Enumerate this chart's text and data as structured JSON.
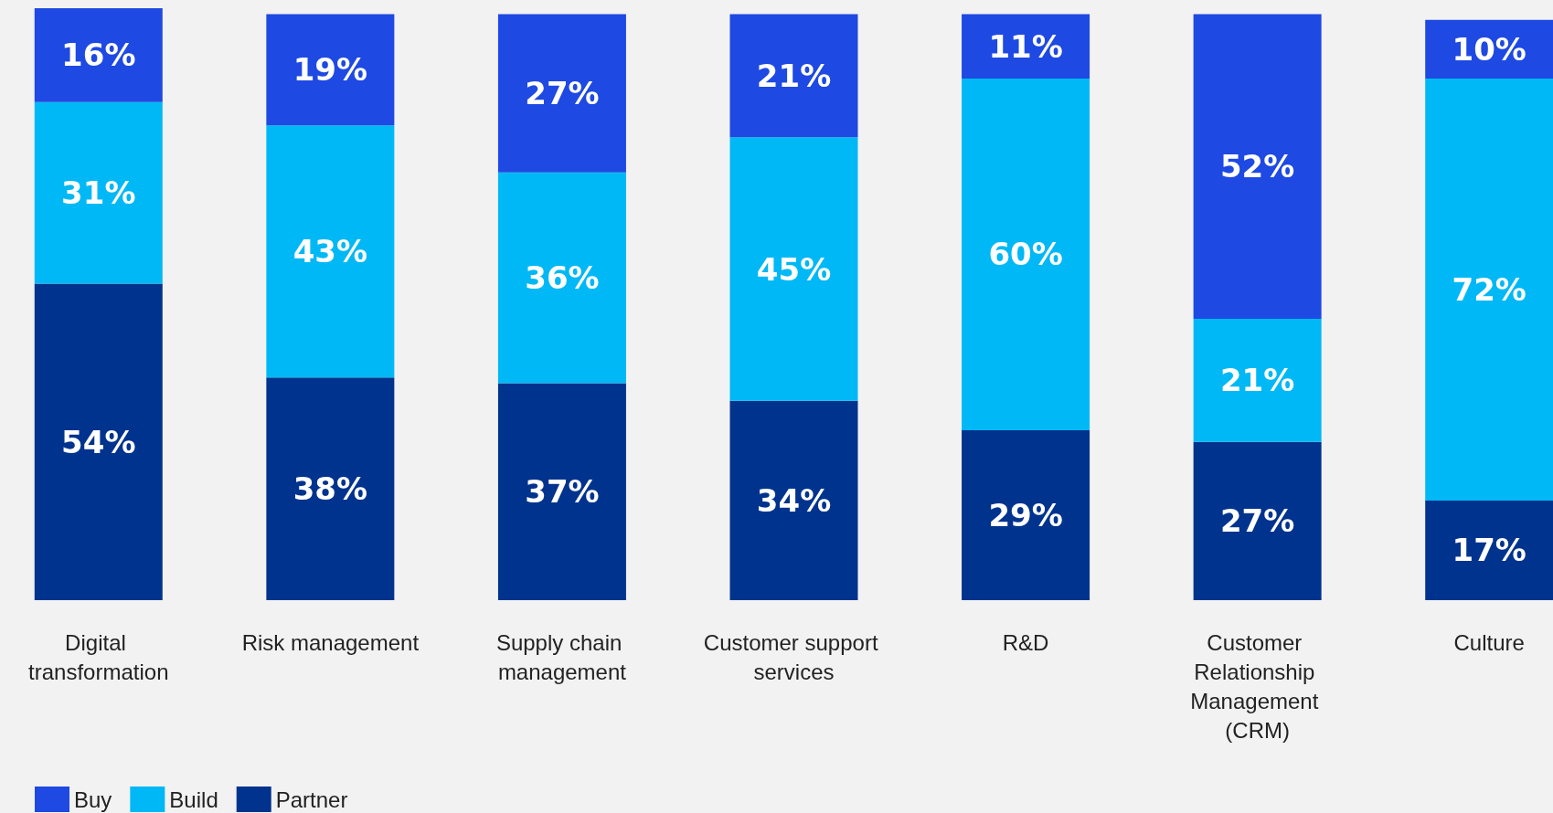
{
  "chart_data": {
    "type": "bar",
    "stacked": true,
    "data_labels": true,
    "legend": "bottom left",
    "categories": [
      "Digital transformation",
      "Risk management",
      "Supply chain management",
      "Customer support services",
      "R&D",
      "Customer Relationship Management (CRM)",
      "Culture"
    ],
    "series": [
      {
        "name": "Partner",
        "color": "#00338d",
        "values": [
          54,
          38,
          37,
          34,
          29,
          27,
          17
        ],
        "value_labels": [
          "54%",
          "38%",
          "37%",
          "34%",
          "29%",
          "27%",
          "17%"
        ]
      },
      {
        "name": "Build",
        "color": "#00b8f5",
        "values": [
          31,
          43,
          36,
          45,
          60,
          21,
          72
        ],
        "value_labels": [
          "31%",
          "43%",
          "36%",
          "45%",
          "60%",
          "21%",
          "72%"
        ]
      },
      {
        "name": "Buy",
        "color": "#1e49e2",
        "values": [
          16,
          19,
          27,
          21,
          11,
          52,
          10
        ],
        "value_labels": [
          "16%",
          "19%",
          "27%",
          "21%",
          "11%",
          "52%",
          "10%"
        ]
      }
    ]
  }
}
